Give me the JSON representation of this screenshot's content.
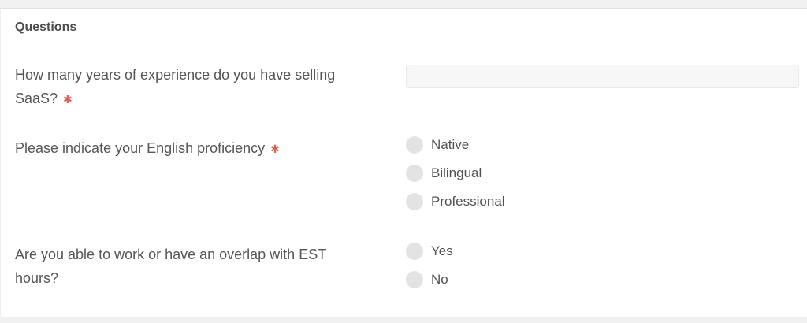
{
  "section": {
    "title": "Questions"
  },
  "required_marker": "✱",
  "colors": {
    "required_asterisk": "#e05d54",
    "radio_fill": "#e3e3e5",
    "input_background": "#f7f7f7",
    "text": "#55565a"
  },
  "questions": [
    {
      "label": "How many years of experience do you have selling SaaS?",
      "required": true,
      "type": "text",
      "input": {
        "value": ""
      }
    },
    {
      "label": "Please indicate your English proficiency",
      "required": true,
      "type": "radio",
      "options": [
        "Native",
        "Bilingual",
        "Professional"
      ]
    },
    {
      "label": "Are you able to work or have an overlap with EST hours?",
      "required": false,
      "type": "radio",
      "options": [
        "Yes",
        "No"
      ]
    }
  ]
}
